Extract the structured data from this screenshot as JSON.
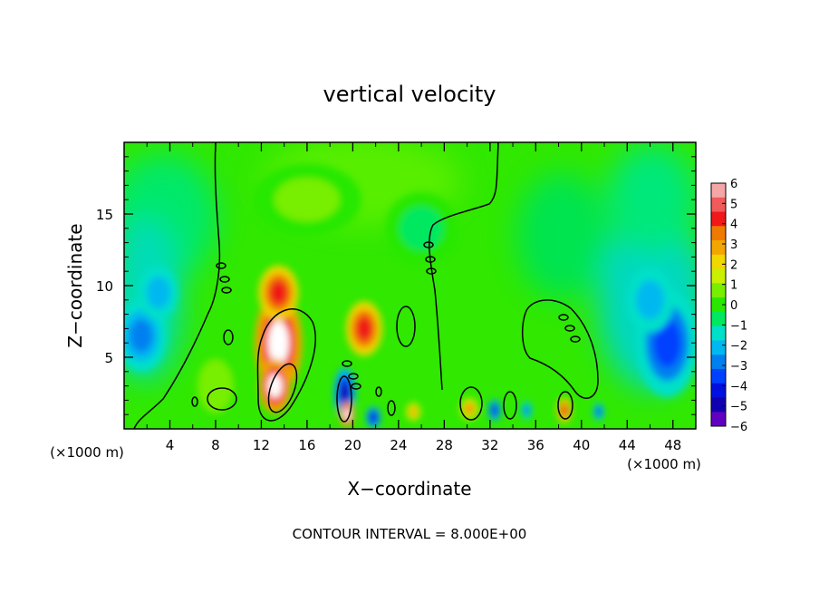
{
  "chart_data": {
    "type": "heatmap",
    "title": "vertical velocity",
    "xlabel": "X−coordinate",
    "ylabel": "Z−coordinate",
    "x_unit_left": "(×1000 m)",
    "x_unit_right": "(×1000 m)",
    "footer": "CONTOUR INTERVAL = 8.000E+00",
    "xlim": [
      0,
      50
    ],
    "ylim": [
      0,
      20
    ],
    "x_ticks": [
      4,
      8,
      12,
      16,
      20,
      24,
      28,
      32,
      36,
      40,
      44,
      48
    ],
    "y_ticks": [
      5,
      10,
      15
    ],
    "colorbar": {
      "ticks": [
        "6",
        "5",
        "4",
        "3",
        "2",
        "1",
        "0",
        "−1",
        "−2",
        "−3",
        "−4",
        "−5",
        "−6"
      ],
      "colors": [
        "#f5a7a7",
        "#f05a5a",
        "#f01818",
        "#f07a00",
        "#f2a600",
        "#f0d800",
        "#c8f000",
        "#78ee00",
        "#28e800",
        "#00e860",
        "#00e0c8",
        "#00b8f0",
        "#0080f0",
        "#0040ff",
        "#0010e0",
        "#1000b0",
        "#6000c0"
      ]
    },
    "cells": [
      {
        "x": 1.5,
        "z": 6.5,
        "value": -3.2
      },
      {
        "x": 3.0,
        "z": 9.5,
        "value": -2.2
      },
      {
        "x": 8.0,
        "z": 3.0,
        "value": 0.8
      },
      {
        "x": 13.5,
        "z": 6.0,
        "value": 6.5
      },
      {
        "x": 13.5,
        "z": 9.5,
        "value": 4.6
      },
      {
        "x": 13.2,
        "z": 3.0,
        "value": 6.2
      },
      {
        "x": 19.3,
        "z": 2.5,
        "value": -5.2
      },
      {
        "x": 19.5,
        "z": 1.0,
        "value": 6.2
      },
      {
        "x": 21.0,
        "z": 7.0,
        "value": 4.8
      },
      {
        "x": 21.8,
        "z": 0.8,
        "value": -4.5
      },
      {
        "x": 25.3,
        "z": 1.2,
        "value": 3.2
      },
      {
        "x": 30.2,
        "z": 1.4,
        "value": 3.5
      },
      {
        "x": 32.4,
        "z": 1.3,
        "value": -4.2
      },
      {
        "x": 35.2,
        "z": 1.3,
        "value": -3.0
      },
      {
        "x": 38.5,
        "z": 1.3,
        "value": 4.2
      },
      {
        "x": 41.5,
        "z": 1.2,
        "value": -3.8
      },
      {
        "x": 47.5,
        "z": 6.0,
        "value": -3.8
      },
      {
        "x": 46.0,
        "z": 9.0,
        "value": -2.2
      },
      {
        "x": 26.0,
        "z": 14.0,
        "value": -0.6
      },
      {
        "x": 16.0,
        "z": 16.0,
        "value": 0.4
      }
    ]
  }
}
